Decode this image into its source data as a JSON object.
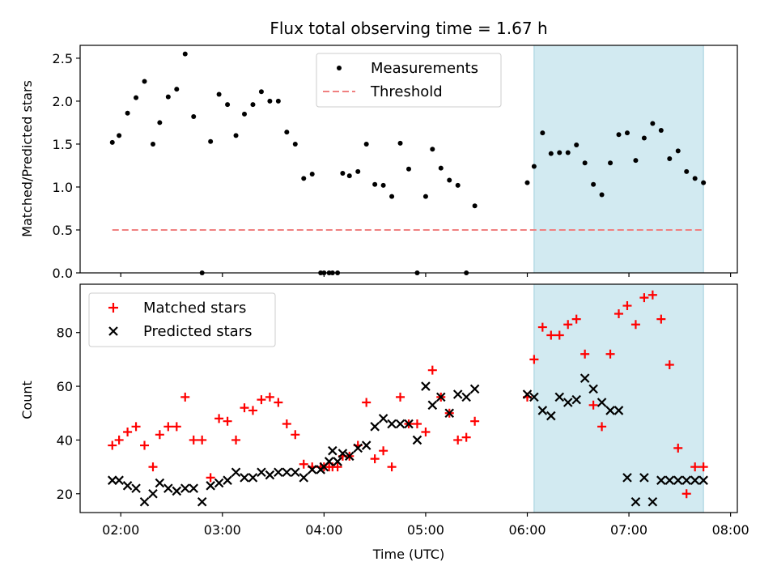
{
  "chart_data": [
    {
      "type": "scatter",
      "title": "Flux total observing time = 1.67 h",
      "ylabel": "Matched/Predicted stars",
      "ylim": [
        0,
        2.65
      ],
      "yticks": [
        0.0,
        0.5,
        1.0,
        1.5,
        2.0,
        2.5
      ],
      "ytick_labels": [
        "0.0",
        "0.5",
        "1.0",
        "1.5",
        "2.0",
        "2.5"
      ],
      "shaded_interval": [
        "06:04",
        "07:44"
      ],
      "shade_color": "#add8e6",
      "legend_position": "top-center",
      "series": [
        {
          "name": "Measurements",
          "kind": "points",
          "color": "#000000",
          "x": [
            "01:55",
            "01:59",
            "02:04",
            "02:09",
            "02:14",
            "02:19",
            "02:23",
            "02:28",
            "02:33",
            "02:38",
            "02:43",
            "02:48",
            "02:53",
            "02:58",
            "03:03",
            "03:08",
            "03:13",
            "03:18",
            "03:23",
            "03:28",
            "03:33",
            "03:38",
            "03:43",
            "03:48",
            "03:53",
            "03:58",
            "04:00",
            "04:03",
            "04:05",
            "04:08",
            "04:11",
            "04:15",
            "04:20",
            "04:25",
            "04:30",
            "04:35",
            "04:40",
            "04:45",
            "04:50",
            "04:55",
            "05:00",
            "05:04",
            "05:09",
            "05:14",
            "05:19",
            "05:24",
            "05:29",
            "06:00",
            "06:04",
            "06:09",
            "06:14",
            "06:19",
            "06:24",
            "06:29",
            "06:34",
            "06:39",
            "06:44",
            "06:49",
            "06:54",
            "06:59",
            "07:04",
            "07:09",
            "07:14",
            "07:19",
            "07:24",
            "07:29",
            "07:34",
            "07:39",
            "07:44"
          ],
          "y": [
            1.52,
            1.6,
            1.86,
            2.04,
            2.23,
            1.5,
            1.75,
            2.05,
            2.14,
            2.55,
            1.82,
            0.0,
            1.53,
            2.08,
            1.96,
            1.6,
            1.85,
            1.96,
            2.11,
            2.0,
            2.0,
            1.64,
            1.5,
            1.1,
            1.15,
            0.0,
            0.0,
            0.0,
            0.0,
            0.0,
            1.16,
            1.13,
            1.18,
            1.5,
            1.03,
            1.02,
            0.89,
            1.51,
            1.21,
            0.0,
            0.89,
            1.44,
            1.22,
            1.08,
            1.02,
            0.0,
            0.78,
            1.05,
            1.24,
            1.63,
            1.39,
            1.4,
            1.4,
            1.49,
            1.28,
            1.03,
            0.91,
            1.28,
            1.61,
            1.63,
            1.31,
            1.57,
            1.74,
            1.66,
            1.33,
            1.42,
            1.18,
            1.1,
            1.05
          ]
        },
        {
          "name": "Threshold",
          "kind": "dashed-line",
          "color": "#f08080",
          "x": [
            "01:55",
            "07:44"
          ],
          "y": [
            0.5,
            0.5
          ]
        }
      ]
    },
    {
      "type": "scatter",
      "xlabel": "Time (UTC)",
      "ylabel": "Count",
      "ylim": [
        13,
        98
      ],
      "yticks": [
        20,
        40,
        60,
        80
      ],
      "ytick_labels": [
        "20",
        "40",
        "60",
        "80"
      ],
      "xlim": [
        "01:36",
        "08:04"
      ],
      "xticks": [
        "02:00",
        "03:00",
        "04:00",
        "05:00",
        "06:00",
        "07:00",
        "08:00"
      ],
      "shaded_interval": [
        "06:04",
        "07:44"
      ],
      "shade_color": "#add8e6",
      "legend_position": "top-left",
      "series": [
        {
          "name": "Matched stars",
          "marker": "+",
          "color": "#ff0000",
          "x": [
            "01:55",
            "01:59",
            "02:04",
            "02:09",
            "02:14",
            "02:19",
            "02:23",
            "02:28",
            "02:33",
            "02:38",
            "02:43",
            "02:48",
            "02:53",
            "02:58",
            "03:03",
            "03:08",
            "03:13",
            "03:18",
            "03:23",
            "03:28",
            "03:33",
            "03:38",
            "03:43",
            "03:48",
            "03:53",
            "03:58",
            "04:00",
            "04:03",
            "04:05",
            "04:08",
            "04:11",
            "04:15",
            "04:20",
            "04:25",
            "04:30",
            "04:35",
            "04:40",
            "04:45",
            "04:50",
            "04:55",
            "05:00",
            "05:04",
            "05:09",
            "05:14",
            "05:19",
            "05:24",
            "05:29",
            "06:00",
            "06:04",
            "06:09",
            "06:14",
            "06:19",
            "06:24",
            "06:29",
            "06:34",
            "06:39",
            "06:44",
            "06:49",
            "06:54",
            "06:59",
            "07:04",
            "07:09",
            "07:14",
            "07:19",
            "07:24",
            "07:29",
            "07:34",
            "07:39",
            "07:44"
          ],
          "y": [
            38,
            40,
            43,
            45,
            38,
            30,
            42,
            45,
            45,
            56,
            40,
            40,
            26,
            48,
            47,
            40,
            52,
            51,
            55,
            56,
            54,
            46,
            42,
            31,
            30,
            30,
            30,
            30,
            30,
            30,
            34,
            34,
            38,
            54,
            33,
            36,
            30,
            56,
            46,
            46,
            43,
            66,
            56,
            50,
            40,
            41,
            47,
            56,
            70,
            82,
            79,
            79,
            83,
            85,
            72,
            53,
            45,
            72,
            87,
            90,
            83,
            93,
            94,
            85,
            68,
            37,
            20,
            30,
            30
          ]
        },
        {
          "name": "Predicted stars",
          "marker": "x",
          "color": "#000000",
          "x": [
            "01:55",
            "01:59",
            "02:04",
            "02:09",
            "02:14",
            "02:19",
            "02:23",
            "02:28",
            "02:33",
            "02:38",
            "02:43",
            "02:48",
            "02:53",
            "02:58",
            "03:03",
            "03:08",
            "03:13",
            "03:18",
            "03:23",
            "03:28",
            "03:33",
            "03:38",
            "03:43",
            "03:48",
            "03:53",
            "03:58",
            "04:00",
            "04:03",
            "04:05",
            "04:08",
            "04:11",
            "04:15",
            "04:20",
            "04:25",
            "04:30",
            "04:35",
            "04:40",
            "04:45",
            "04:50",
            "04:55",
            "05:00",
            "05:04",
            "05:09",
            "05:14",
            "05:19",
            "05:24",
            "05:29",
            "06:00",
            "06:04",
            "06:09",
            "06:14",
            "06:19",
            "06:24",
            "06:29",
            "06:34",
            "06:39",
            "06:44",
            "06:49",
            "06:54",
            "06:59",
            "07:04",
            "07:09",
            "07:14",
            "07:19",
            "07:24",
            "07:29",
            "07:34",
            "07:39",
            "07:44"
          ],
          "y": [
            25,
            25,
            23,
            22,
            17,
            20,
            24,
            22,
            21,
            22,
            22,
            17,
            23,
            24,
            25,
            28,
            26,
            26,
            28,
            27,
            28,
            28,
            28,
            26,
            29,
            29,
            30,
            32,
            36,
            32,
            35,
            34,
            37,
            38,
            45,
            48,
            46,
            46,
            46,
            40,
            60,
            53,
            56,
            50,
            57,
            56,
            59,
            57,
            56,
            51,
            49,
            56,
            54,
            55,
            63,
            59,
            54,
            51,
            51,
            26,
            17,
            26,
            17,
            25,
            25,
            25,
            25,
            25,
            25
          ]
        }
      ]
    }
  ]
}
